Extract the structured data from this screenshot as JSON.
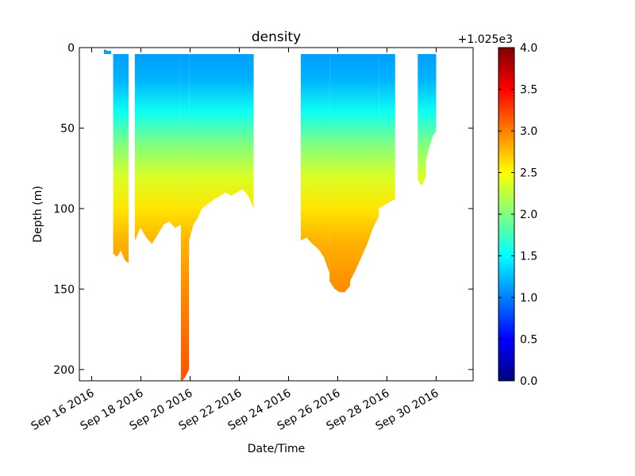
{
  "chart_data": {
    "type": "scatter",
    "title": "density",
    "xlabel": "Date/Time",
    "ylabel": "Depth (m)",
    "y_inverted": true,
    "ylim": [
      207,
      0
    ],
    "xlim": [
      "2016-09-15 12:00",
      "2016-10-01 12:00"
    ],
    "x_ticks": [
      "Sep 16 2016",
      "Sep 18 2016",
      "Sep 20 2016",
      "Sep 22 2016",
      "Sep 24 2016",
      "Sep 26 2016",
      "Sep 28 2016",
      "Sep 30 2016"
    ],
    "y_ticks": [
      "0",
      "50",
      "100",
      "150",
      "200"
    ],
    "colorbar": {
      "colormap": "jet",
      "range": [
        0.0,
        4.0
      ],
      "ticks": [
        "0.0",
        "0.5",
        "1.0",
        "1.5",
        "2.0",
        "2.5",
        "3.0",
        "3.5",
        "4.0"
      ],
      "offset_label": "+1.025e3"
    },
    "grid": false,
    "profile_segments": [
      {
        "start": "2016-09-16 12:00",
        "end": "2016-09-16 19:00",
        "max_depths_m": [
          1,
          2,
          2
        ]
      },
      {
        "start": "2016-09-16 21:00",
        "end": "2016-09-17 12:00",
        "max_depths_m": [
          128,
          130,
          126,
          132,
          134
        ]
      },
      {
        "start": "2016-09-17 18:00",
        "end": "2016-09-19 15:00",
        "max_depths_m": [
          120,
          112,
          118,
          122,
          116,
          110,
          108,
          112,
          110
        ]
      },
      {
        "start": "2016-09-19 15:00",
        "end": "2016-09-19 23:00",
        "max_depths_m": [
          208,
          205,
          200
        ]
      },
      {
        "start": "2016-09-19 23:00",
        "end": "2016-09-21 00:00",
        "max_depths_m": [
          120,
          110,
          106,
          100,
          98,
          96,
          94
        ]
      },
      {
        "start": "2016-09-21 00:00",
        "end": "2016-09-22 14:00",
        "max_depths_m": [
          94,
          92,
          90,
          92,
          90,
          88,
          92,
          100
        ]
      },
      {
        "start": "2016-09-24 12:00",
        "end": "2016-09-25 16:00",
        "max_depths_m": [
          120,
          118,
          122,
          125,
          130,
          140
        ]
      },
      {
        "start": "2016-09-25 16:00",
        "end": "2016-09-26 12:00",
        "max_depths_m": [
          145,
          150,
          152,
          152,
          148
        ]
      },
      {
        "start": "2016-09-26 12:00",
        "end": "2016-09-27 16:00",
        "max_depths_m": [
          145,
          138,
          130,
          122,
          112,
          105
        ]
      },
      {
        "start": "2016-09-27 16:00",
        "end": "2016-09-28 08:00",
        "max_depths_m": [
          100,
          98,
          96,
          94
        ]
      },
      {
        "start": "2016-09-29 06:00",
        "end": "2016-09-29 14:00",
        "max_depths_m": [
          82,
          86,
          80
        ]
      },
      {
        "start": "2016-09-29 14:00",
        "end": "2016-09-30 00:00",
        "max_depths_m": [
          70,
          62,
          55,
          52
        ]
      }
    ],
    "density_profile_anomaly": [
      {
        "depth_m": 0,
        "value": 1.1
      },
      {
        "depth_m": 20,
        "value": 1.2
      },
      {
        "depth_m": 40,
        "value": 1.55
      },
      {
        "depth_m": 60,
        "value": 2.0
      },
      {
        "depth_m": 80,
        "value": 2.35
      },
      {
        "depth_m": 100,
        "value": 2.6
      },
      {
        "depth_m": 120,
        "value": 2.8
      },
      {
        "depth_m": 140,
        "value": 2.9
      },
      {
        "depth_m": 160,
        "value": 3.0
      },
      {
        "depth_m": 200,
        "value": 3.15
      }
    ]
  }
}
